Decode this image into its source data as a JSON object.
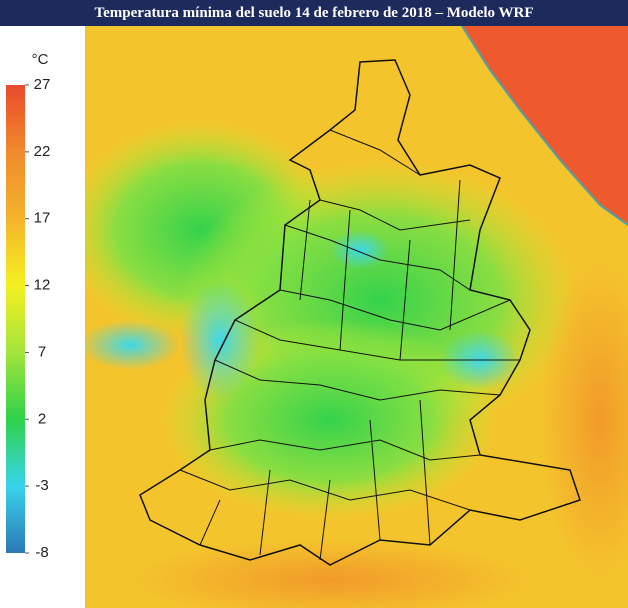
{
  "header": {
    "title": "Temperatura mínima del suelo 14 de febrero de 2018 – Modelo WRF"
  },
  "colorbar": {
    "unit": "°C",
    "lim": [
      -8,
      27
    ],
    "ticks": [
      27,
      22,
      17,
      12,
      7,
      2,
      -3,
      -8
    ],
    "colors": [
      "#2b78b4",
      "#38d4ec",
      "#2fd24a",
      "#a4e43c",
      "#f4f020",
      "#f4b42c",
      "#f08a2c",
      "#ea4a2c"
    ]
  }
}
